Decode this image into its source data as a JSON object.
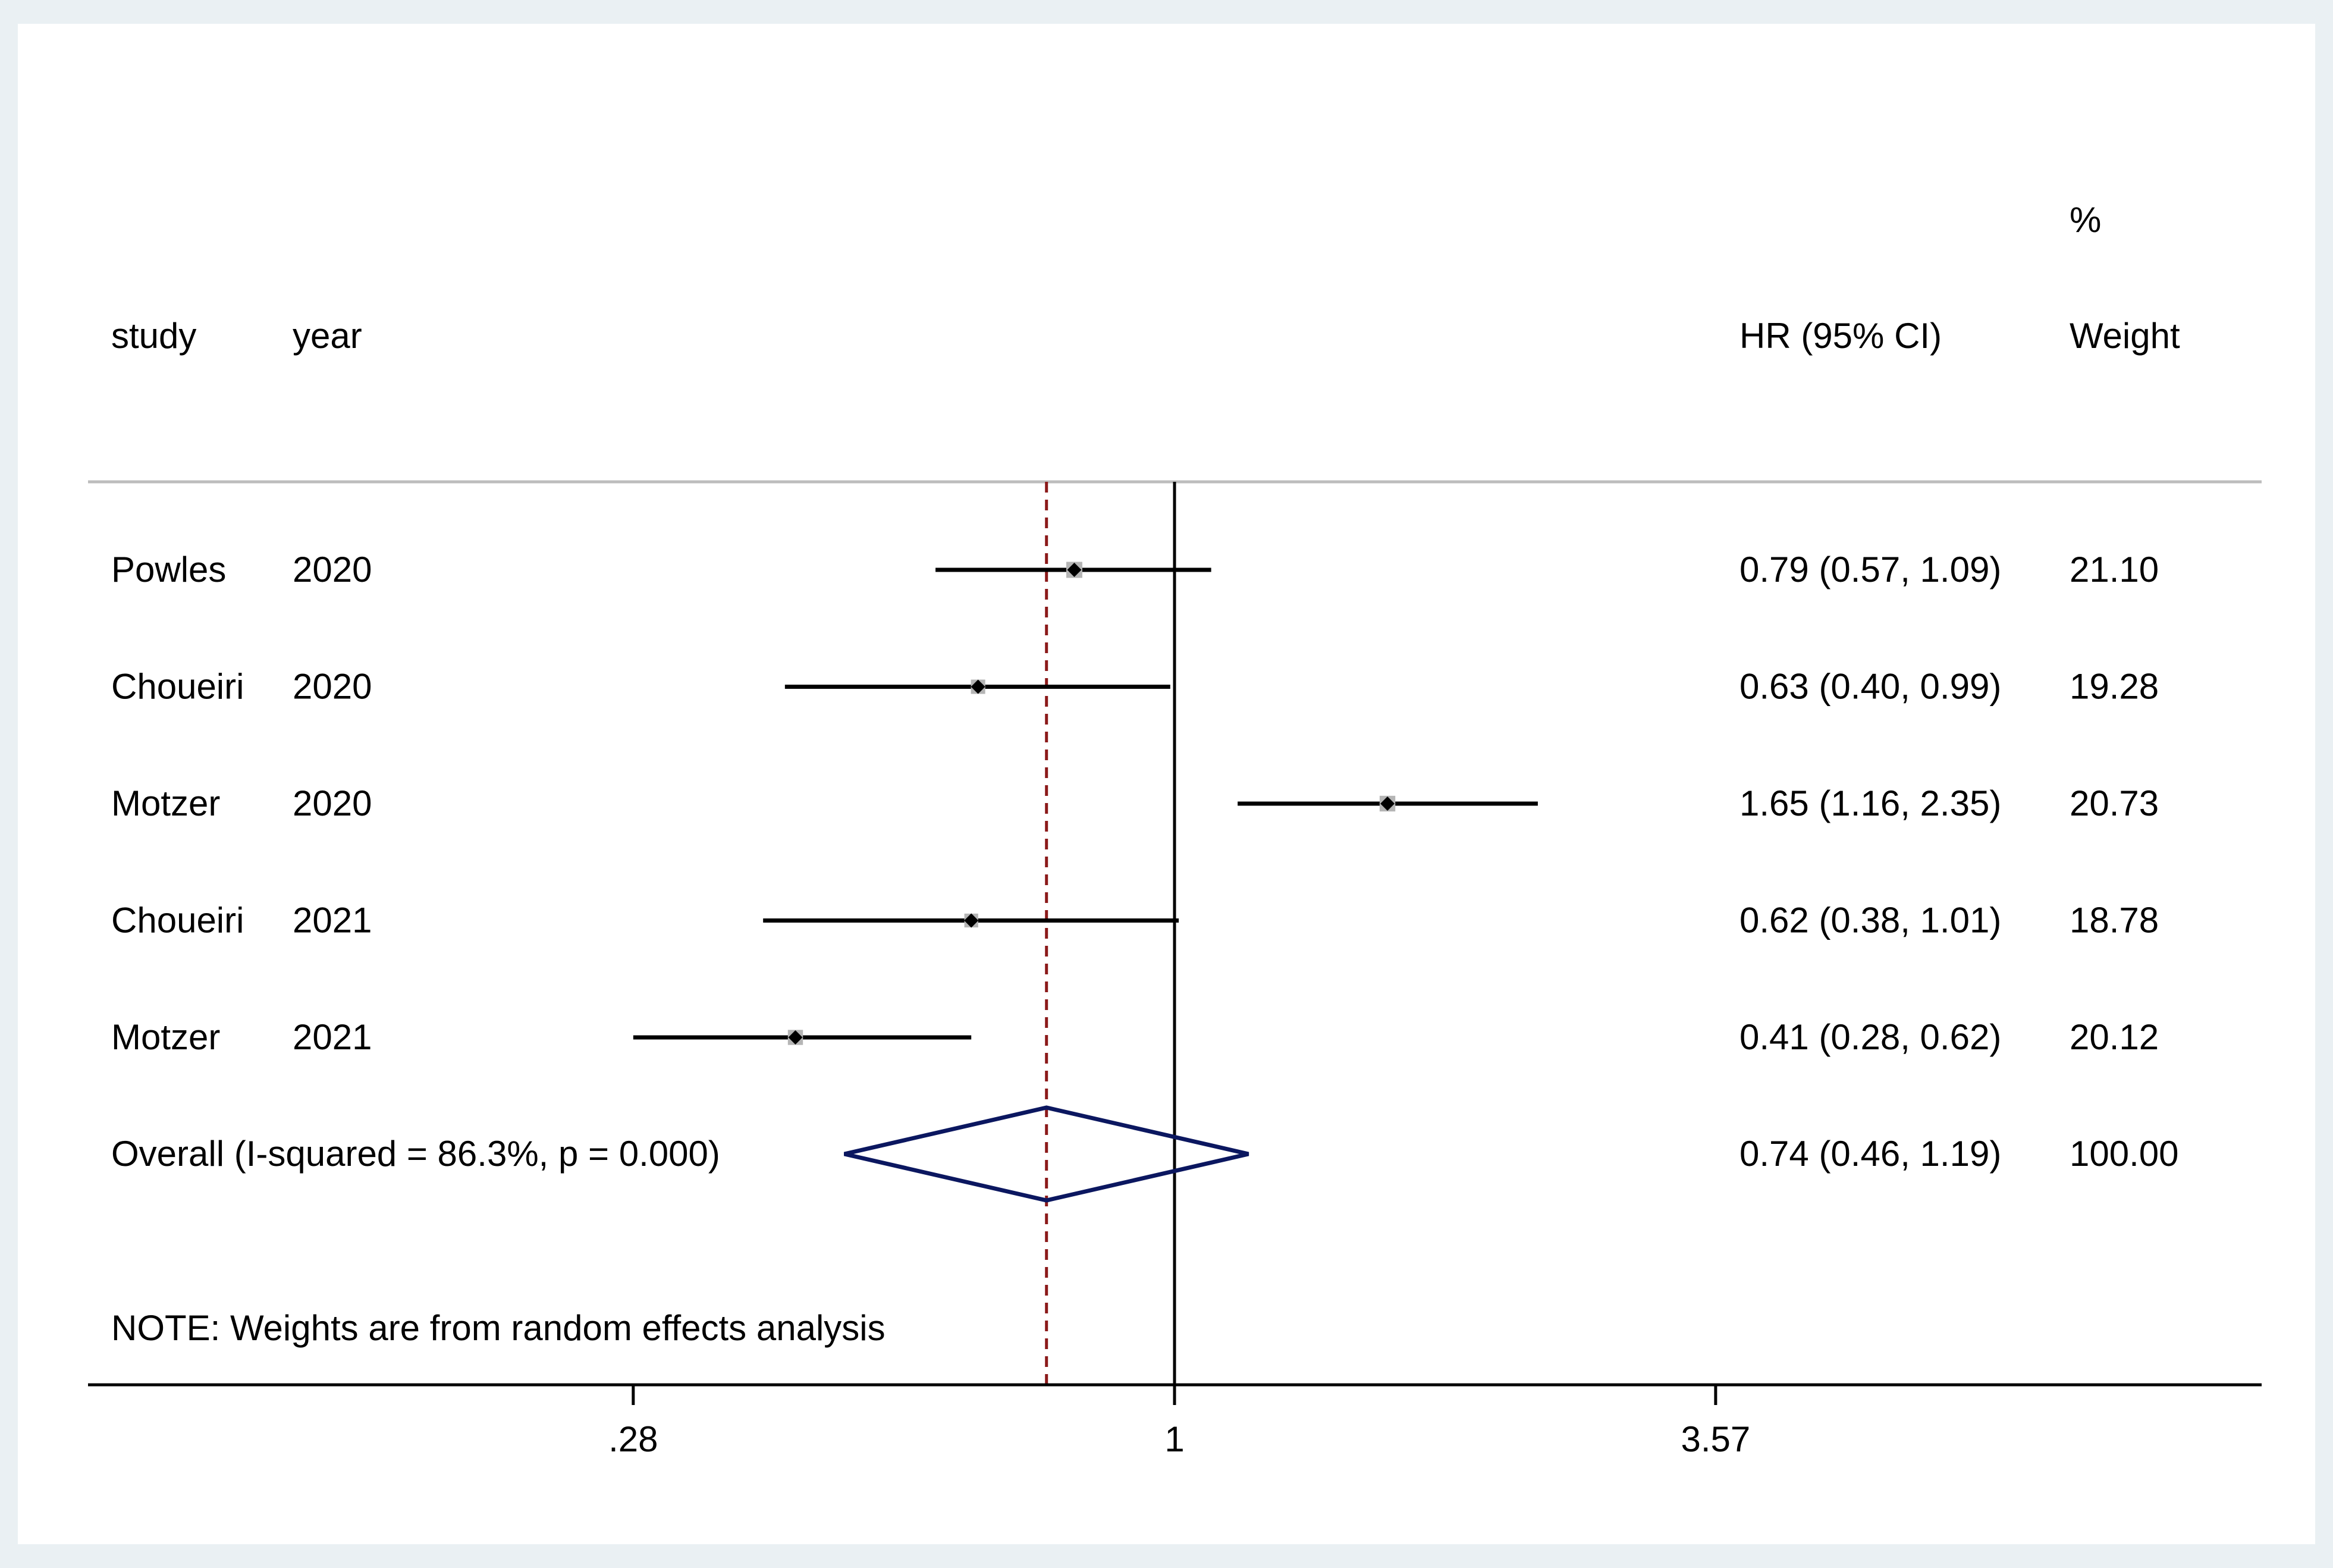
{
  "chart_data": {
    "type": "forest",
    "effect_measure": "HR",
    "x_scale": "log",
    "x_ticks": [
      0.28,
      1,
      3.57
    ],
    "x_tick_labels": [
      ".28",
      "1",
      "3.57"
    ],
    "null_line": 1,
    "overall_line": 0.74,
    "headers": {
      "study": "study",
      "year": "year",
      "estimate": "HR (95% CI)",
      "weight_top": "%",
      "weight": "Weight"
    },
    "studies": [
      {
        "study": "Powles",
        "year": "2020",
        "hr": 0.79,
        "lower": 0.57,
        "upper": 1.09,
        "label": "0.79 (0.57, 1.09)",
        "weight": 21.1,
        "weight_label": "21.10"
      },
      {
        "study": "Choueiri",
        "year": "2020",
        "hr": 0.63,
        "lower": 0.4,
        "upper": 0.99,
        "label": "0.63 (0.40, 0.99)",
        "weight": 19.28,
        "weight_label": "19.28"
      },
      {
        "study": "Motzer",
        "year": "2020",
        "hr": 1.65,
        "lower": 1.16,
        "upper": 2.35,
        "label": "1.65 (1.16, 2.35)",
        "weight": 20.73,
        "weight_label": "20.73"
      },
      {
        "study": "Choueiri",
        "year": "2021",
        "hr": 0.62,
        "lower": 0.38,
        "upper": 1.01,
        "label": "0.62 (0.38, 1.01)",
        "weight": 18.78,
        "weight_label": "18.78"
      },
      {
        "study": "Motzer",
        "year": "2021",
        "hr": 0.41,
        "lower": 0.28,
        "upper": 0.62,
        "label": "0.41 (0.28, 0.62)",
        "weight": 20.12,
        "weight_label": "20.12"
      }
    ],
    "overall": {
      "label": "Overall  (I-squared = 86.3%, p = 0.000)",
      "hr": 0.74,
      "lower": 0.46,
      "upper": 1.19,
      "estimate_label": "0.74 (0.46, 1.19)",
      "weight_label": "100.00"
    },
    "note": "NOTE: Weights are from random effects analysis",
    "colors": {
      "outer_background": "#eaf0f3",
      "plot_background": "#ffffff",
      "null_line": "#000000",
      "overall_line": "#8b1a1a",
      "diamond": "#0b1760",
      "ci_line": "#000000",
      "weight_box": "#b5b5b5",
      "point": "#000000",
      "separator": "#bdbdbd"
    }
  }
}
